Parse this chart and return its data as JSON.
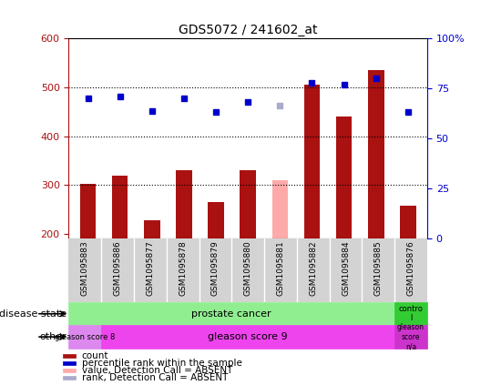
{
  "title": "GDS5072 / 241602_at",
  "samples": [
    "GSM1095883",
    "GSM1095886",
    "GSM1095877",
    "GSM1095878",
    "GSM1095879",
    "GSM1095880",
    "GSM1095881",
    "GSM1095882",
    "GSM1095884",
    "GSM1095885",
    "GSM1095876"
  ],
  "bar_values": [
    303,
    320,
    228,
    330,
    265,
    330,
    310,
    505,
    440,
    535,
    258
  ],
  "bar_absent": [
    false,
    false,
    false,
    false,
    false,
    false,
    true,
    false,
    false,
    false,
    false
  ],
  "rank_values": [
    478,
    482,
    452,
    478,
    450,
    470,
    462,
    510,
    505,
    518,
    450
  ],
  "rank_absent": [
    false,
    false,
    false,
    false,
    false,
    false,
    true,
    false,
    false,
    false,
    false
  ],
  "bar_color_normal": "#aa1111",
  "bar_color_absent": "#ffaaaa",
  "rank_color_normal": "#0000cc",
  "rank_color_absent": "#aaaacc",
  "ylim_left": [
    190,
    600
  ],
  "ylim_right": [
    0,
    100
  ],
  "yticks_left": [
    200,
    300,
    400,
    500,
    600
  ],
  "yticks_right": [
    0,
    25,
    50,
    75,
    100
  ],
  "hlines": [
    300,
    400,
    500
  ],
  "disease_state_label": "disease state",
  "disease_prostate": "prostate cancer",
  "disease_control": "contro\nl",
  "other_label": "other",
  "gleason8": "gleason score 8",
  "gleason9": "gleason score 9",
  "gleason_na": "gleason\nscore\nn/a",
  "legend_items": [
    {
      "label": "count",
      "color": "#aa1111"
    },
    {
      "label": "percentile rank within the sample",
      "color": "#0000cc"
    },
    {
      "label": "value, Detection Call = ABSENT",
      "color": "#ffaaaa"
    },
    {
      "label": "rank, Detection Call = ABSENT",
      "color": "#aaaacc"
    }
  ],
  "bar_width": 0.5,
  "fig_width": 5.39,
  "fig_height": 4.23,
  "dpi": 100
}
